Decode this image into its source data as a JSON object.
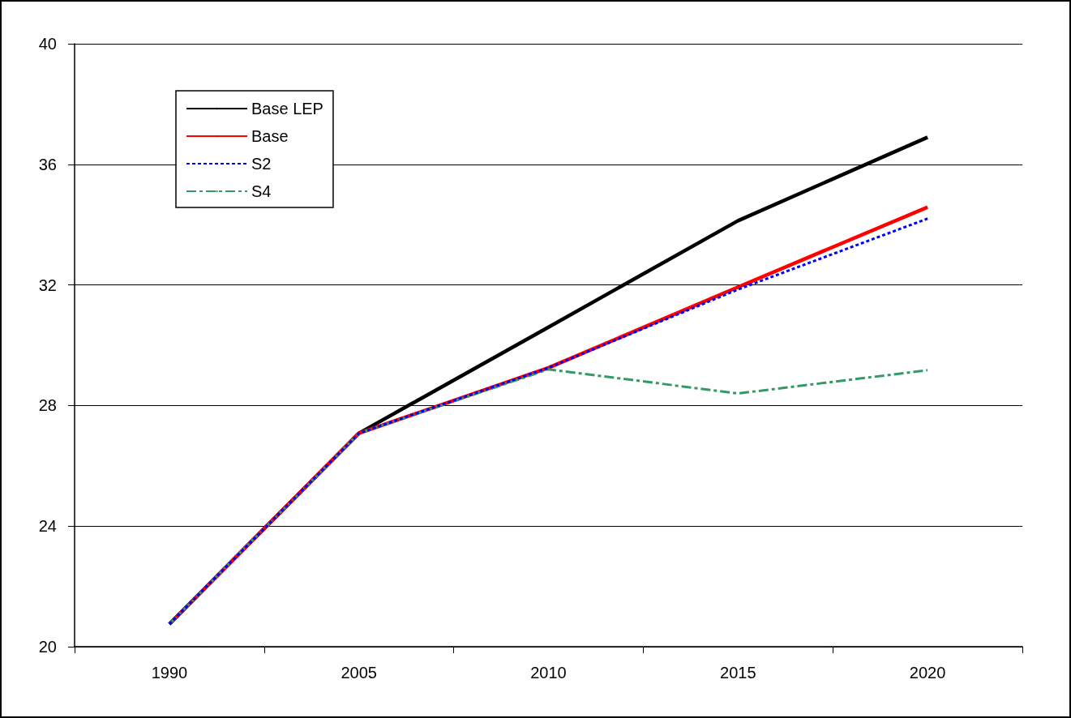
{
  "chart_data": {
    "type": "line",
    "categories": [
      "1990",
      "2005",
      "2010",
      "2015",
      "2020"
    ],
    "series": [
      {
        "name": "Base LEP",
        "color": "#000000",
        "line_style": "solid",
        "values": [
          20.75,
          27.08,
          30.6,
          34.13,
          36.9
        ]
      },
      {
        "name": "Base",
        "color": "#ff0000",
        "line_style": "solid",
        "values": [
          20.75,
          27.08,
          29.25,
          31.93,
          34.58
        ]
      },
      {
        "name": "S2",
        "color": "#0000ff",
        "line_style": "dotted",
        "values": [
          20.75,
          27.08,
          29.25,
          31.85,
          34.2
        ]
      },
      {
        "name": "S4",
        "color": "#339966",
        "line_style": "dashed",
        "values": [
          20.75,
          27.08,
          29.2,
          28.4,
          29.17
        ]
      }
    ],
    "ylim": [
      20,
      40
    ],
    "yticks": [
      20,
      24,
      28,
      32,
      36,
      40
    ],
    "grid": "y",
    "legend": "top left",
    "marker": "none"
  }
}
